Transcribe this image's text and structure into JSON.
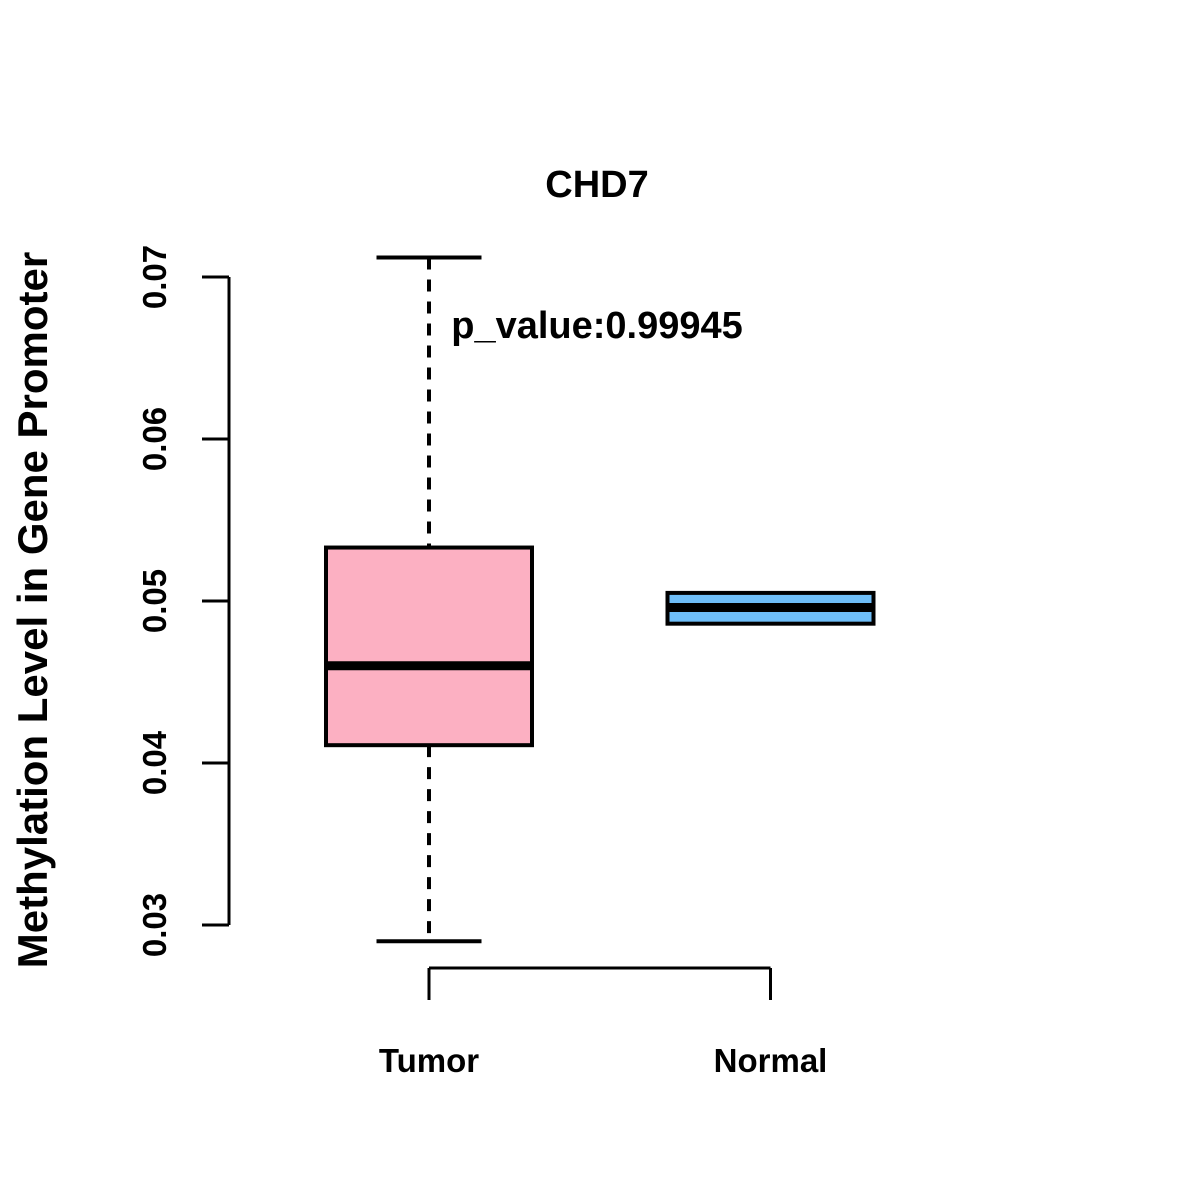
{
  "figure": {
    "title": "CHD7",
    "subtitle": "p_value:0.99945",
    "gene": "CHD7",
    "p_value_text": "p_value:0.99945",
    "y_axis_label": "Methylation Level in Gene Promoter"
  },
  "chart_data": {
    "type": "boxplot",
    "title": "CHD7",
    "subtitle": "p_value:0.99945",
    "p_value": 0.99945,
    "xlabel": "",
    "ylabel": "Methylation Level in Gene Promoter",
    "categories": [
      "Tumor",
      "Normal"
    ],
    "y_ticks": [
      {
        "value": 0.07,
        "label": "0.07"
      },
      {
        "value": 0.06,
        "label": "0.06"
      },
      {
        "value": 0.05,
        "label": "0.05"
      },
      {
        "value": 0.04,
        "label": "0.04"
      },
      {
        "value": 0.03,
        "label": "0.03"
      }
    ],
    "ylim": [
      0.0285,
      0.0715
    ],
    "grid": false,
    "legend": "none",
    "series": [
      {
        "name": "Tumor",
        "fill_color": "#FCB0C2",
        "whisker_low": 0.029,
        "q1": 0.0411,
        "median": 0.046,
        "q3": 0.0533,
        "whisker_high": 0.0712,
        "whisker_style": "dashed",
        "whiskers_visible": true
      },
      {
        "name": "Normal",
        "fill_color": "#6FBEF8",
        "whisker_low": 0.0486,
        "q1": 0.0486,
        "median": 0.0496,
        "q3": 0.0505,
        "whisker_high": 0.0505,
        "whisker_style": "dashed",
        "whiskers_visible": false
      }
    ],
    "colors": {
      "box_border": "#000000",
      "median_line": "#000000",
      "axis": "#000000",
      "background": "#FFFFFF"
    }
  }
}
